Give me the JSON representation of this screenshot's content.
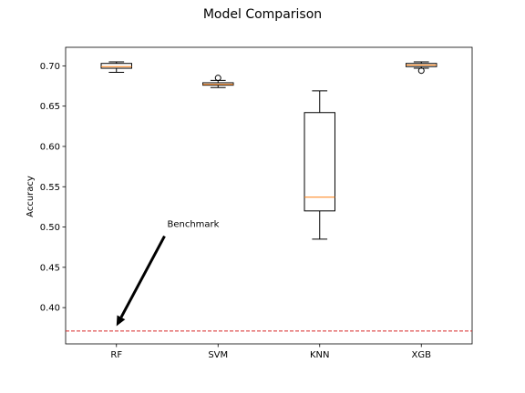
{
  "chart_data": {
    "type": "box",
    "title": "Model Comparison",
    "xlabel": "",
    "ylabel": "Accuracy",
    "ylim": [
      0.355,
      0.723
    ],
    "yticks": [
      "0.40",
      "0.45",
      "0.50",
      "0.55",
      "0.60",
      "0.65",
      "0.70"
    ],
    "ytick_values": [
      0.4,
      0.45,
      0.5,
      0.55,
      0.6,
      0.65,
      0.7
    ],
    "categories": [
      "RF",
      "SVM",
      "KNN",
      "XGB"
    ],
    "boxes": [
      {
        "whisker_low": 0.692,
        "q1": 0.697,
        "median": 0.699,
        "q3": 0.703,
        "whisker_high": 0.705,
        "outliers": []
      },
      {
        "whisker_low": 0.673,
        "q1": 0.676,
        "median": 0.677,
        "q3": 0.679,
        "whisker_high": 0.682,
        "outliers": [
          0.685
        ]
      },
      {
        "whisker_low": 0.485,
        "q1": 0.52,
        "median": 0.537,
        "q3": 0.642,
        "whisker_high": 0.669,
        "outliers": []
      },
      {
        "whisker_low": 0.697,
        "q1": 0.699,
        "median": 0.701,
        "q3": 0.703,
        "whisker_high": 0.705,
        "outliers": [
          0.694
        ]
      }
    ],
    "reference_line": {
      "value": 0.371,
      "color": "#d62728",
      "style": "dashed"
    },
    "annotation": {
      "text": "Benchmark",
      "text_x": 1.5,
      "text_y": 0.5,
      "arrow_to_x": 1.0,
      "arrow_to_y": 0.377
    },
    "box_color": "#000000",
    "median_color": "#ff7f0e",
    "grid": false
  }
}
